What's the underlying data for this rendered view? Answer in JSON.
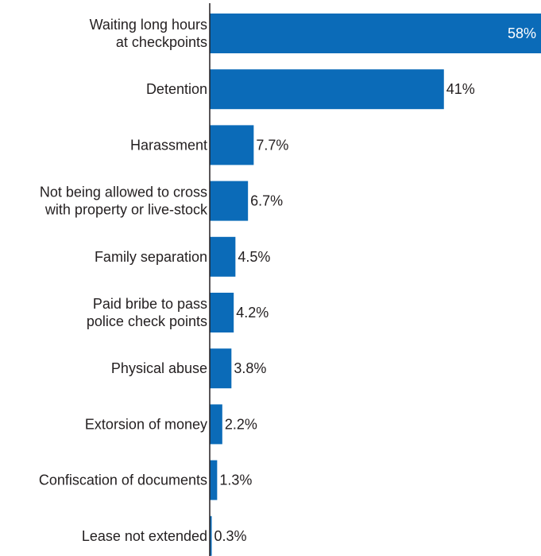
{
  "chart_data": {
    "type": "bar",
    "orientation": "horizontal",
    "categories": [
      [
        "Waiting long hours",
        "at checkpoints"
      ],
      [
        "Detention"
      ],
      [
        "Harassment"
      ],
      [
        "Not being allowed to cross",
        "with property or live-stock"
      ],
      [
        "Family separation"
      ],
      [
        "Paid bribe to pass",
        "police check points"
      ],
      [
        "Physical abuse"
      ],
      [
        "Extorsion of money"
      ],
      [
        "Confiscation of documents"
      ],
      [
        "Lease not extended"
      ]
    ],
    "values": [
      58,
      41,
      7.7,
      6.7,
      4.5,
      4.2,
      3.8,
      2.2,
      1.3,
      0.3
    ],
    "value_labels": [
      "58%",
      "41%",
      "7.7%",
      "6.7%",
      "4.5%",
      "4.2%",
      "3.8%",
      "2.2%",
      "1.3%",
      "0.3%"
    ],
    "title": "",
    "xlabel": "",
    "ylabel": "",
    "xlim": [
      0,
      58
    ],
    "grid": false,
    "legend": "none",
    "colors": {
      "bar": "#0b6bb8",
      "axis": "#231f20",
      "text": "#231f20",
      "label_inside": "#ffffff"
    }
  }
}
